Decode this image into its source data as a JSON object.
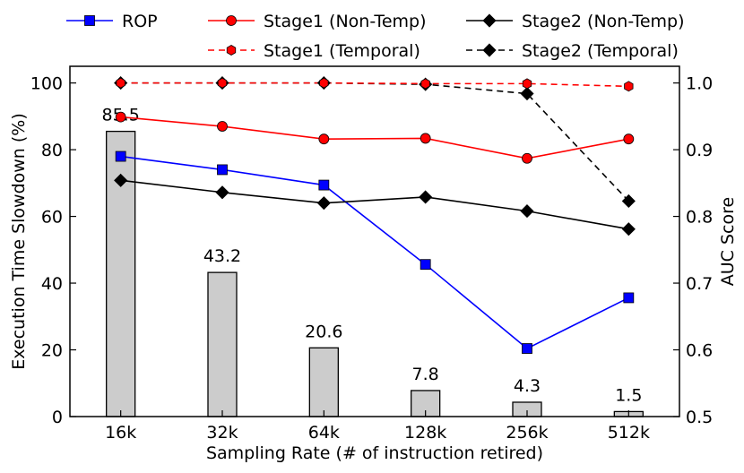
{
  "chart_data": {
    "type": "bar+line",
    "categories": [
      "16k",
      "32k",
      "64k",
      "128k",
      "256k",
      "512k"
    ],
    "xlabel": "Sampling Rate (# of instruction retired)",
    "ylabel_left": "Execution Time Slowdown (%)",
    "ylabel_right": "AUC Score",
    "ylim_left": [
      0,
      105
    ],
    "ylim_right": [
      0.5,
      1.025
    ],
    "yticks_left": [
      "0",
      "20",
      "40",
      "60",
      "80",
      "100"
    ],
    "yticks_right": [
      "0.5",
      "0.6",
      "0.7",
      "0.8",
      "0.9",
      "1.0"
    ],
    "bars": {
      "name": "Execution Time Slowdown",
      "values": [
        85.5,
        43.2,
        20.6,
        7.8,
        4.3,
        1.5
      ],
      "labels": [
        "85.5",
        "43.2",
        "20.6",
        "7.8",
        "4.3",
        "1.5"
      ],
      "color": "#cccccc"
    },
    "series": [
      {
        "name": "ROP",
        "axis": "right",
        "color": "#0000ff",
        "style": "solid",
        "marker": "square",
        "values": [
          0.89,
          0.87,
          0.847,
          0.728,
          0.602,
          0.678
        ]
      },
      {
        "name": "Stage1 (Non-Temp)",
        "axis": "right",
        "color": "#ff0000",
        "style": "solid",
        "marker": "circle",
        "values": [
          0.949,
          0.935,
          0.916,
          0.917,
          0.887,
          0.916
        ]
      },
      {
        "name": "Stage2 (Non-Temp)",
        "axis": "right",
        "color": "#000000",
        "style": "solid",
        "marker": "diamond",
        "values": [
          0.854,
          0.836,
          0.82,
          0.829,
          0.808,
          0.781
        ]
      },
      {
        "name": "Stage1 (Temporal)",
        "axis": "right",
        "color": "#ff0000",
        "style": "dashed",
        "marker": "hexagon",
        "values": [
          1.0,
          1.0,
          1.0,
          0.999,
          0.999,
          0.995
        ]
      },
      {
        "name": "Stage2 (Temporal)",
        "axis": "right",
        "color": "#000000",
        "style": "dashed",
        "marker": "diamond",
        "values": [
          1.0,
          1.0,
          1.0,
          0.998,
          0.984,
          0.823
        ]
      }
    ],
    "legend": {
      "placement": "top",
      "rows": [
        [
          "ROP",
          "Stage1 (Non-Temp)",
          "Stage2 (Non-Temp)"
        ],
        [
          "",
          "Stage1 (Temporal)",
          "Stage2 (Temporal)"
        ]
      ]
    }
  }
}
